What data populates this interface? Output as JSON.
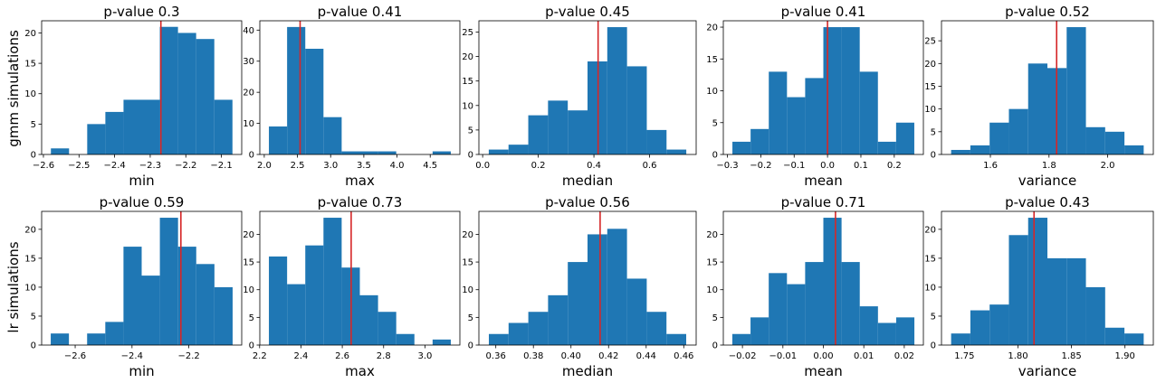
{
  "figure": {
    "row_labels": [
      "gmm simulations",
      "lr simulations"
    ]
  },
  "colors": {
    "bar": "#1f77b4",
    "observed_line": "#d62728"
  },
  "chart_data": [
    {
      "type": "bar",
      "title": "p-value 0.3",
      "xlabel": "min",
      "ylabel": "",
      "bin_edges": [
        -2.579,
        -2.528,
        -2.477,
        -2.426,
        -2.375,
        -2.324,
        -2.273,
        -2.222,
        -2.171,
        -2.12,
        -2.069
      ],
      "counts": [
        1,
        0,
        5,
        7,
        9,
        9,
        21,
        20,
        19,
        9
      ],
      "observed": -2.27,
      "xlim": [
        -2.605,
        -2.043
      ],
      "xticks": [
        -2.6,
        -2.5,
        -2.4,
        -2.3,
        -2.2,
        -2.1
      ],
      "xtick_labels": [
        "−2.6",
        "−2.5",
        "−2.4",
        "−2.3",
        "−2.2",
        "−2.1"
      ],
      "ylim": [
        0,
        22
      ],
      "yticks": [
        0,
        5,
        10,
        15,
        20
      ],
      "ytick_labels": [
        "0",
        "5",
        "10",
        "15",
        "20"
      ]
    },
    {
      "type": "bar",
      "title": "p-value 0.41",
      "xlabel": "max",
      "ylabel": "",
      "bin_edges": [
        2.07,
        2.344,
        2.618,
        2.892,
        3.166,
        3.44,
        3.714,
        3.988,
        4.262,
        4.536,
        4.81
      ],
      "counts": [
        9,
        41,
        34,
        12,
        1,
        1,
        1,
        0,
        0,
        1
      ],
      "observed": 2.54,
      "xlim": [
        1.933,
        4.947
      ],
      "xticks": [
        2.0,
        2.5,
        3.0,
        3.5,
        4.0,
        4.5
      ],
      "xtick_labels": [
        "2.0",
        "2.5",
        "3.0",
        "3.5",
        "4.0",
        "4.5"
      ],
      "ylim": [
        0,
        43
      ],
      "yticks": [
        0,
        10,
        20,
        30,
        40
      ],
      "ytick_labels": [
        "0",
        "10",
        "20",
        "30",
        "40"
      ]
    },
    {
      "type": "bar",
      "title": "p-value 0.45",
      "xlabel": "median",
      "ylabel": "",
      "bin_edges": [
        0.022,
        0.093,
        0.164,
        0.235,
        0.306,
        0.377,
        0.448,
        0.519,
        0.59,
        0.661,
        0.732
      ],
      "counts": [
        1,
        2,
        8,
        11,
        9,
        19,
        26,
        18,
        5,
        1
      ],
      "observed": 0.415,
      "xlim": [
        -0.0135,
        0.7675
      ],
      "xticks": [
        0.0,
        0.2,
        0.4,
        0.6
      ],
      "xtick_labels": [
        "0.0",
        "0.2",
        "0.4",
        "0.6"
      ],
      "ylim": [
        0,
        27.3
      ],
      "yticks": [
        0,
        5,
        10,
        15,
        20,
        25
      ],
      "ytick_labels": [
        "0",
        "5",
        "10",
        "15",
        "20",
        "25"
      ]
    },
    {
      "type": "bar",
      "title": "p-value 0.41",
      "xlabel": "mean",
      "ylabel": "",
      "bin_edges": [
        -0.285,
        -0.2305,
        -0.176,
        -0.1215,
        -0.067,
        -0.0125,
        0.042,
        0.0965,
        0.151,
        0.2055,
        0.26
      ],
      "counts": [
        2,
        4,
        13,
        9,
        12,
        20,
        20,
        13,
        2,
        5
      ],
      "observed": 0.0,
      "xlim": [
        -0.31225,
        0.28725
      ],
      "xticks": [
        -0.3,
        -0.2,
        -0.1,
        0.0,
        0.1,
        0.2
      ],
      "xtick_labels": [
        "−0.3",
        "−0.2",
        "−0.1",
        "0.0",
        "0.1",
        "0.2"
      ],
      "ylim": [
        0,
        21
      ],
      "yticks": [
        0,
        5,
        10,
        15,
        20
      ],
      "ytick_labels": [
        "0",
        "5",
        "10",
        "15",
        "20"
      ]
    },
    {
      "type": "bar",
      "title": "p-value 0.52",
      "xlabel": "variance",
      "ylabel": "",
      "bin_edges": [
        1.466,
        1.5317,
        1.5974,
        1.6631,
        1.7288,
        1.7945,
        1.8602,
        1.9259,
        1.9916,
        2.0573,
        2.123
      ],
      "counts": [
        1,
        2,
        7,
        10,
        20,
        19,
        28,
        6,
        5,
        2
      ],
      "observed": 1.826,
      "xlim": [
        1.43315,
        2.15585
      ],
      "xticks": [
        1.6,
        1.8,
        2.0
      ],
      "xtick_labels": [
        "1.6",
        "1.8",
        "2.0"
      ],
      "ylim": [
        0,
        29.4
      ],
      "yticks": [
        0,
        5,
        10,
        15,
        20,
        25
      ],
      "ytick_labels": [
        "0",
        "5",
        "10",
        "15",
        "20",
        "25"
      ]
    },
    {
      "type": "bar",
      "title": "p-value 0.59",
      "xlabel": "min",
      "ylabel": "",
      "bin_edges": [
        -2.686,
        -2.622,
        -2.558,
        -2.494,
        -2.43,
        -2.366,
        -2.302,
        -2.238,
        -2.174,
        -2.11,
        -2.046
      ],
      "counts": [
        2,
        0,
        2,
        4,
        17,
        12,
        22,
        17,
        14,
        10
      ],
      "observed": -2.228,
      "xlim": [
        -2.718,
        -2.014
      ],
      "xticks": [
        -2.6,
        -2.4,
        -2.2
      ],
      "xtick_labels": [
        "−2.6",
        "−2.4",
        "−2.2"
      ],
      "ylim": [
        0,
        23.1
      ],
      "yticks": [
        0,
        5,
        10,
        15,
        20
      ],
      "ytick_labels": [
        "0",
        "5",
        "10",
        "15",
        "20"
      ]
    },
    {
      "type": "bar",
      "title": "p-value 0.73",
      "xlabel": "max",
      "ylabel": "",
      "bin_edges": [
        2.245,
        2.333,
        2.421,
        2.509,
        2.597,
        2.685,
        2.773,
        2.861,
        2.949,
        3.037,
        3.125
      ],
      "counts": [
        16,
        11,
        18,
        23,
        14,
        9,
        6,
        2,
        0,
        1
      ],
      "observed": 2.643,
      "xlim": [
        2.201,
        3.169
      ],
      "xticks": [
        2.2,
        2.4,
        2.6,
        2.8,
        3.0
      ],
      "xtick_labels": [
        "2.2",
        "2.4",
        "2.6",
        "2.8",
        "3.0"
      ],
      "ylim": [
        0,
        24.15
      ],
      "yticks": [
        0,
        5,
        10,
        15,
        20
      ],
      "ytick_labels": [
        "0",
        "5",
        "10",
        "15",
        "20"
      ]
    },
    {
      "type": "bar",
      "title": "p-value 0.56",
      "xlabel": "median",
      "ylabel": "",
      "bin_edges": [
        0.3563,
        0.3668,
        0.3773,
        0.3878,
        0.3983,
        0.4088,
        0.4193,
        0.4298,
        0.4403,
        0.4508,
        0.4613
      ],
      "counts": [
        2,
        4,
        6,
        9,
        15,
        20,
        21,
        12,
        6,
        2
      ],
      "observed": 0.4155,
      "xlim": [
        0.351,
        0.4666
      ],
      "xticks": [
        0.36,
        0.38,
        0.4,
        0.42,
        0.44,
        0.46
      ],
      "xtick_labels": [
        "0.36",
        "0.38",
        "0.40",
        "0.42",
        "0.44",
        "0.46"
      ],
      "ylim": [
        0,
        24.15
      ],
      "yticks": [
        0,
        5,
        10,
        15,
        20
      ],
      "ytick_labels": [
        "0",
        "5",
        "10",
        "15",
        "20"
      ]
    },
    {
      "type": "bar",
      "title": "p-value 0.71",
      "xlabel": "mean",
      "ylabel": "",
      "bin_edges": [
        -0.0225,
        -0.018,
        -0.0135,
        -0.009,
        -0.0045,
        0.0,
        0.0045,
        0.009,
        0.0135,
        0.018,
        0.0225
      ],
      "counts": [
        2,
        5,
        13,
        11,
        15,
        23,
        15,
        7,
        4,
        5
      ],
      "observed": 0.003,
      "xlim": [
        -0.024725,
        0.024725
      ],
      "xticks": [
        -0.02,
        -0.01,
        0.0,
        0.01,
        0.02
      ],
      "xtick_labels": [
        "−0.02",
        "−0.01",
        "0.00",
        "0.01",
        "0.02"
      ],
      "ylim": [
        0,
        24.15
      ],
      "yticks": [
        0,
        5,
        10,
        15,
        20
      ],
      "ytick_labels": [
        "0",
        "5",
        "10",
        "15",
        "20"
      ]
    },
    {
      "type": "bar",
      "title": "p-value 0.43",
      "xlabel": "variance",
      "ylabel": "",
      "bin_edges": [
        1.7375,
        1.7555,
        1.7735,
        1.7915,
        1.8095,
        1.8275,
        1.8455,
        1.8635,
        1.8815,
        1.8995,
        1.9175
      ],
      "counts": [
        2,
        6,
        7,
        19,
        22,
        15,
        15,
        10,
        3,
        2
      ],
      "observed": 1.815,
      "xlim": [
        1.7285,
        1.9265
      ],
      "xticks": [
        1.75,
        1.8,
        1.85,
        1.9
      ],
      "xtick_labels": [
        "1.75",
        "1.80",
        "1.85",
        "1.90"
      ],
      "ylim": [
        0,
        23.1
      ],
      "yticks": [
        0,
        5,
        10,
        15,
        20
      ],
      "ytick_labels": [
        "0",
        "5",
        "10",
        "15",
        "20"
      ]
    }
  ]
}
